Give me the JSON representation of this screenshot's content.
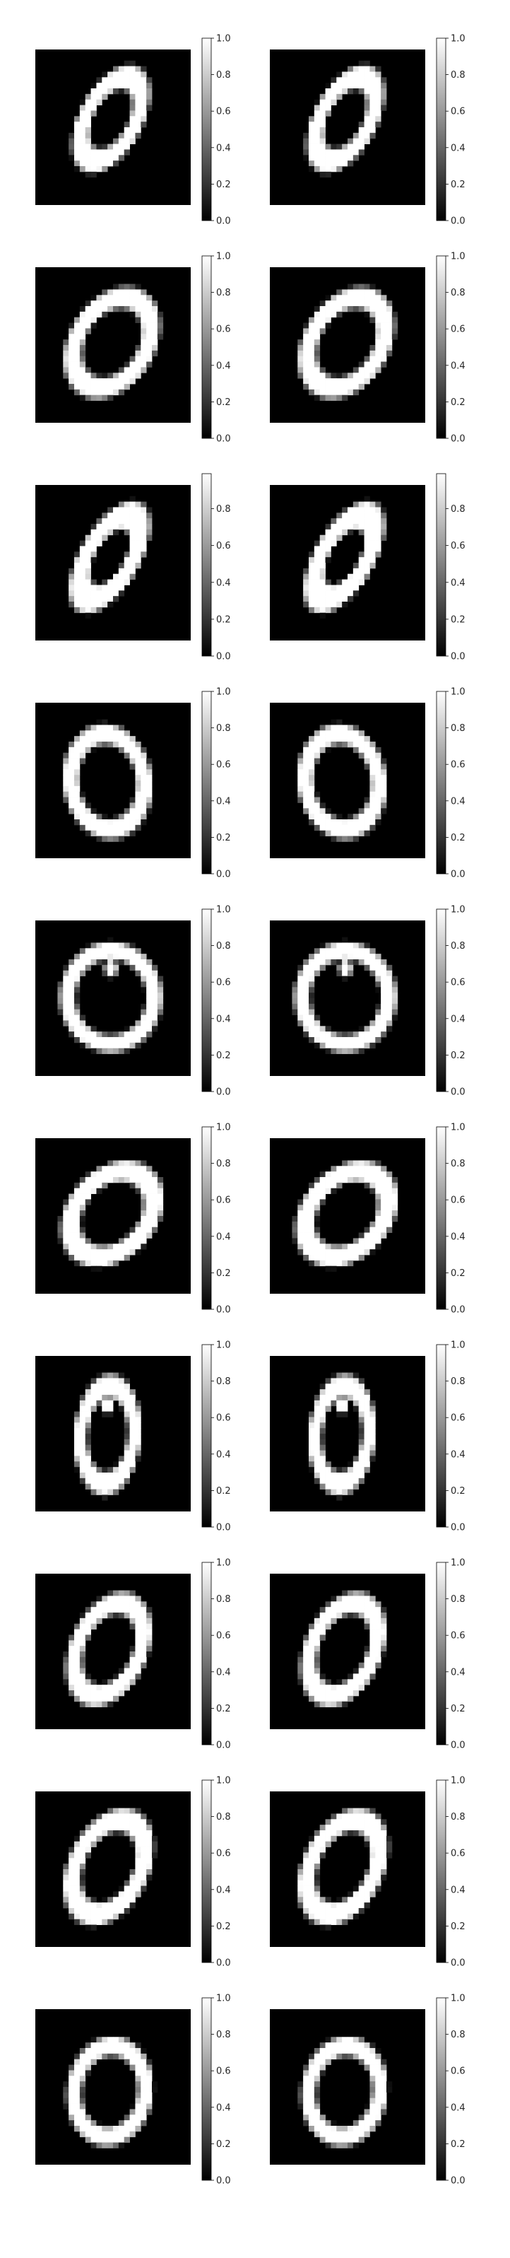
{
  "chart_data": {
    "type": "heatmap",
    "layout": {
      "rows": 10,
      "cols": 2
    },
    "colormap": "gray",
    "grid": false,
    "axes_visible": false,
    "shared_digit": "0",
    "colorbar_ticks_full": [
      "0.0",
      "0.2",
      "0.4",
      "0.6",
      "0.8",
      "1.0"
    ],
    "colorbar_ticks_row3": [
      "0.0",
      "0.2",
      "0.4",
      "0.6",
      "0.8"
    ],
    "panels": [
      {
        "digit": "0",
        "row": 1,
        "col": 1,
        "vmin": 0.0,
        "vmax": 1.0,
        "colorbar_ticks": [
          "0.0",
          "0.2",
          "0.4",
          "0.6",
          "0.8",
          "1.0"
        ]
      },
      {
        "digit": "0",
        "row": 1,
        "col": 2,
        "vmin": 0.0,
        "vmax": 1.0,
        "colorbar_ticks": [
          "0.0",
          "0.2",
          "0.4",
          "0.6",
          "0.8",
          "1.0"
        ]
      },
      {
        "digit": "0",
        "row": 2,
        "col": 1,
        "vmin": 0.0,
        "vmax": 1.0,
        "colorbar_ticks": [
          "0.0",
          "0.2",
          "0.4",
          "0.6",
          "0.8",
          "1.0"
        ]
      },
      {
        "digit": "0",
        "row": 2,
        "col": 2,
        "vmin": 0.0,
        "vmax": 1.0,
        "colorbar_ticks": [
          "0.0",
          "0.2",
          "0.4",
          "0.6",
          "0.8",
          "1.0"
        ]
      },
      {
        "digit": "0",
        "row": 3,
        "col": 1,
        "vmin": 0.0,
        "vmax": 0.99,
        "colorbar_ticks": [
          "0.0",
          "0.2",
          "0.4",
          "0.6",
          "0.8"
        ]
      },
      {
        "digit": "0",
        "row": 3,
        "col": 2,
        "vmin": 0.0,
        "vmax": 0.99,
        "colorbar_ticks": [
          "0.0",
          "0.2",
          "0.4",
          "0.6",
          "0.8"
        ]
      },
      {
        "digit": "0",
        "row": 4,
        "col": 1,
        "vmin": 0.0,
        "vmax": 1.0,
        "colorbar_ticks": [
          "0.0",
          "0.2",
          "0.4",
          "0.6",
          "0.8",
          "1.0"
        ]
      },
      {
        "digit": "0",
        "row": 4,
        "col": 2,
        "vmin": 0.0,
        "vmax": 1.0,
        "colorbar_ticks": [
          "0.0",
          "0.2",
          "0.4",
          "0.6",
          "0.8",
          "1.0"
        ]
      },
      {
        "digit": "0",
        "row": 5,
        "col": 1,
        "vmin": 0.0,
        "vmax": 1.0,
        "colorbar_ticks": [
          "0.0",
          "0.2",
          "0.4",
          "0.6",
          "0.8",
          "1.0"
        ]
      },
      {
        "digit": "0",
        "row": 5,
        "col": 2,
        "vmin": 0.0,
        "vmax": 1.0,
        "colorbar_ticks": [
          "0.0",
          "0.2",
          "0.4",
          "0.6",
          "0.8",
          "1.0"
        ]
      },
      {
        "digit": "0",
        "row": 6,
        "col": 1,
        "vmin": 0.0,
        "vmax": 1.0,
        "colorbar_ticks": [
          "0.0",
          "0.2",
          "0.4",
          "0.6",
          "0.8",
          "1.0"
        ]
      },
      {
        "digit": "0",
        "row": 6,
        "col": 2,
        "vmin": 0.0,
        "vmax": 1.0,
        "colorbar_ticks": [
          "0.0",
          "0.2",
          "0.4",
          "0.6",
          "0.8",
          "1.0"
        ]
      },
      {
        "digit": "0",
        "row": 7,
        "col": 1,
        "vmin": 0.0,
        "vmax": 1.0,
        "colorbar_ticks": [
          "0.0",
          "0.2",
          "0.4",
          "0.6",
          "0.8",
          "1.0"
        ]
      },
      {
        "digit": "0",
        "row": 7,
        "col": 2,
        "vmin": 0.0,
        "vmax": 1.0,
        "colorbar_ticks": [
          "0.0",
          "0.2",
          "0.4",
          "0.6",
          "0.8",
          "1.0"
        ]
      },
      {
        "digit": "0",
        "row": 8,
        "col": 1,
        "vmin": 0.0,
        "vmax": 1.0,
        "colorbar_ticks": [
          "0.0",
          "0.2",
          "0.4",
          "0.6",
          "0.8",
          "1.0"
        ]
      },
      {
        "digit": "0",
        "row": 8,
        "col": 2,
        "vmin": 0.0,
        "vmax": 1.0,
        "colorbar_ticks": [
          "0.0",
          "0.2",
          "0.4",
          "0.6",
          "0.8",
          "1.0"
        ]
      },
      {
        "digit": "0",
        "row": 9,
        "col": 1,
        "vmin": 0.0,
        "vmax": 1.0,
        "colorbar_ticks": [
          "0.0",
          "0.2",
          "0.4",
          "0.6",
          "0.8",
          "1.0"
        ]
      },
      {
        "digit": "0",
        "row": 9,
        "col": 2,
        "vmin": 0.0,
        "vmax": 1.0,
        "colorbar_ticks": [
          "0.0",
          "0.2",
          "0.4",
          "0.6",
          "0.8",
          "1.0"
        ]
      },
      {
        "digit": "0",
        "row": 10,
        "col": 1,
        "vmin": 0.0,
        "vmax": 1.0,
        "colorbar_ticks": [
          "0.0",
          "0.2",
          "0.4",
          "0.6",
          "0.8",
          "1.0"
        ]
      },
      {
        "digit": "0",
        "row": 10,
        "col": 2,
        "vmin": 0.0,
        "vmax": 1.0,
        "colorbar_ticks": [
          "0.0",
          "0.2",
          "0.4",
          "0.6",
          "0.8",
          "1.0"
        ]
      }
    ]
  }
}
